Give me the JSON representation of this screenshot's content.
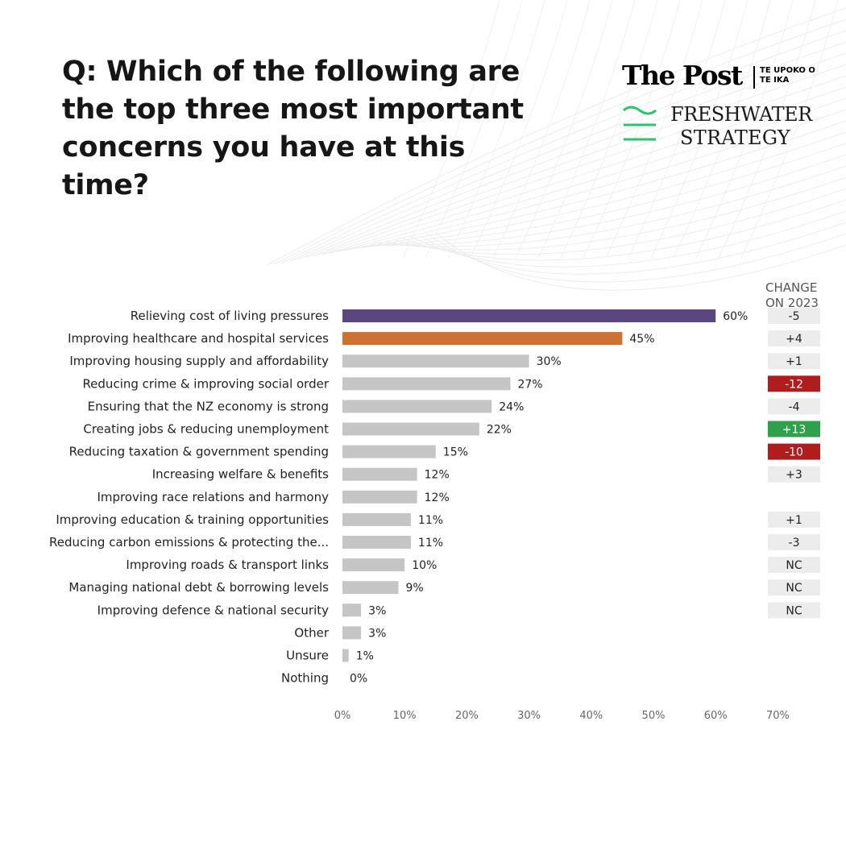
{
  "question": "Q: Which of the following are the top three most important concerns you have at this time?",
  "logos": {
    "post_name": "The Post",
    "post_tagline": "TE UPOKO O TE IKA",
    "freshwater_line1": "FRESHWATER",
    "freshwater_line2": "STRATEGY",
    "freshwater_icon": "wave-lines-icon"
  },
  "change_header": {
    "line1": "CHANGE",
    "line2": "ON 2023"
  },
  "colors": {
    "highlight_1": "#5b4680",
    "highlight_2": "#cc7331",
    "bar_default": "#c5c5c5",
    "change_positive": "#2fa04c",
    "change_negative": "#b01d1d",
    "change_neutral": "#ececec",
    "freshwater_green": "#2cc36a"
  },
  "chart_data": {
    "type": "bar",
    "orientation": "horizontal",
    "categories": [
      "Relieving cost of living pressures",
      "Improving healthcare and hospital services",
      "Improving housing supply and affordability",
      "Reducing crime & improving social order",
      "Ensuring that the NZ economy is strong",
      "Creating jobs & reducing unemployment",
      "Reducing taxation & government spending",
      "Increasing welfare & benefits",
      "Improving race relations and harmony",
      "Improving education & training opportunities",
      "Reducing carbon emissions & protecting the...",
      "Improving roads & transport links",
      "Managing national debt & borrowing levels",
      "Improving defence & national security",
      "Other",
      "Unsure",
      "Nothing"
    ],
    "values": [
      60,
      45,
      30,
      27,
      24,
      22,
      15,
      12,
      12,
      11,
      11,
      10,
      9,
      3,
      3,
      1,
      0
    ],
    "value_labels": [
      "60%",
      "45%",
      "30%",
      "27%",
      "24%",
      "22%",
      "15%",
      "12%",
      "12%",
      "11%",
      "11%",
      "10%",
      "9%",
      "3%",
      "3%",
      "1%",
      "0%"
    ],
    "change_on_2023": [
      "-5",
      "+4",
      "+1",
      "-12",
      "-4",
      "+13",
      "-10",
      "+3",
      "",
      "+1",
      "-3",
      "NC",
      "NC",
      "NC",
      "",
      "",
      ""
    ],
    "change_status": [
      "neutral",
      "neutral",
      "neutral",
      "negative",
      "neutral",
      "positive",
      "negative",
      "neutral",
      "",
      "neutral",
      "neutral",
      "neutral",
      "neutral",
      "neutral",
      "",
      "",
      ""
    ],
    "bar_colors": [
      "highlight_1",
      "highlight_2"
    ],
    "xlim": [
      0,
      70
    ],
    "xticks": [
      0,
      10,
      20,
      30,
      40,
      50,
      60,
      70
    ],
    "xtick_labels": [
      "0%",
      "10%",
      "20%",
      "30%",
      "40%",
      "50%",
      "60%",
      "70%"
    ],
    "grid": false
  }
}
